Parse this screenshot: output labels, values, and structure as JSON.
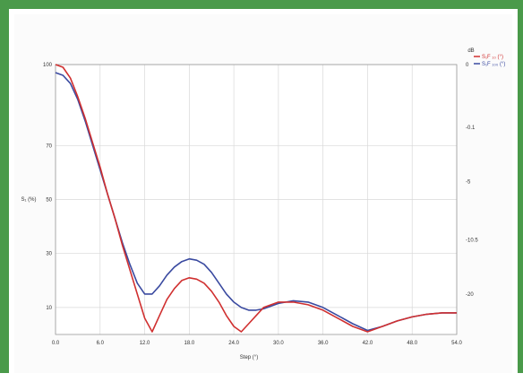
{
  "chart_data": {
    "type": "line",
    "title": "",
    "xlabel": "Step (°)",
    "ylabel": "S₁ (%)",
    "y2label": "dB",
    "xlim": [
      0,
      54
    ],
    "ylim": [
      0,
      100
    ],
    "y2lim": [
      -30,
      0
    ],
    "xticks": [
      "0.0",
      "6.0",
      "12.0",
      "18.0",
      "24.0",
      "30.0",
      "36.0",
      "42.0",
      "48.0",
      "54.0"
    ],
    "xtick_values": [
      0,
      6,
      12,
      18,
      24,
      30,
      36,
      42,
      48,
      54
    ],
    "yticks": [
      "100",
      "70",
      "50",
      "30",
      "10"
    ],
    "ytick_values": [
      100,
      70,
      50,
      30,
      10
    ],
    "y2ticks": [
      "0",
      "-0.1",
      "-5",
      "-10.5",
      "-20"
    ],
    "y2tick_values": [
      0,
      -7,
      -13,
      -19.5,
      -25.5
    ],
    "grid": true,
    "legend_position": "top-right",
    "series": [
      {
        "name": "S₁F ₁₀ (°)",
        "color": "#d03030",
        "x": [
          0,
          1,
          2,
          3,
          4,
          5,
          6,
          7,
          8,
          9,
          10,
          11,
          12,
          13,
          14,
          15,
          16,
          17,
          18,
          19,
          20,
          21,
          22,
          23,
          24,
          25,
          26,
          27,
          28,
          29,
          30,
          32,
          34,
          36,
          38,
          40,
          42,
          44,
          46,
          48,
          50,
          52,
          54
        ],
        "y": [
          100,
          99,
          95,
          88,
          80,
          71,
          62,
          52,
          43,
          33,
          24,
          15,
          6,
          1,
          7,
          13,
          17,
          20,
          21,
          20.5,
          19,
          16,
          12,
          7,
          3,
          1,
          4,
          7,
          10,
          11,
          12,
          12,
          11,
          9,
          6,
          3,
          1,
          3,
          5,
          6.5,
          7.5,
          8,
          8
        ]
      },
      {
        "name": "S₁F ₁₀₀ (°)",
        "color": "#3a4aa0",
        "x": [
          0,
          1,
          2,
          3,
          4,
          5,
          6,
          7,
          8,
          9,
          10,
          11,
          12,
          13,
          14,
          15,
          16,
          17,
          18,
          19,
          20,
          21,
          22,
          23,
          24,
          25,
          26,
          27,
          28,
          29,
          30,
          32,
          34,
          36,
          38,
          40,
          42,
          44,
          46,
          48,
          50,
          52,
          54
        ],
        "y": [
          97,
          96,
          93,
          87,
          79,
          70,
          61,
          52,
          43,
          34,
          26,
          19,
          15,
          15,
          18,
          22,
          25,
          27,
          28,
          27.5,
          26,
          23,
          19,
          15,
          12,
          10,
          9,
          9,
          9.5,
          10.5,
          11.5,
          12.5,
          12,
          10,
          7,
          4,
          1.5,
          3,
          5,
          6.5,
          7.5,
          8,
          8
        ]
      }
    ]
  }
}
